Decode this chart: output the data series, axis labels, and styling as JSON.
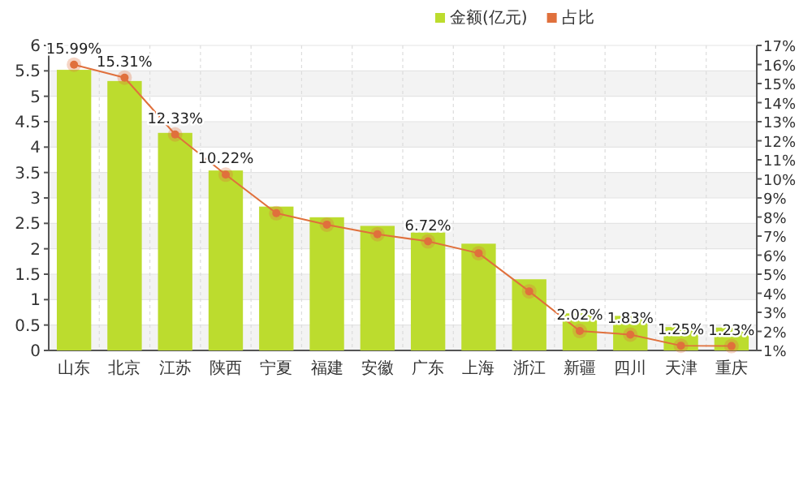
{
  "chart_data": {
    "type": "bar",
    "categories": [
      "山东",
      "北京",
      "江苏",
      "陕西",
      "宁夏",
      "福建",
      "安徽",
      "广东",
      "上海",
      "浙江",
      "新疆",
      "四川",
      "天津",
      "重庆"
    ],
    "series": [
      {
        "name": "金额(亿元)",
        "color": "#bcdc2e",
        "values": [
          5.52,
          5.3,
          4.28,
          3.54,
          2.83,
          2.62,
          2.45,
          2.32,
          2.1,
          1.4,
          0.73,
          0.68,
          0.46,
          0.45
        ]
      },
      {
        "name": "占比",
        "type": "line",
        "axis": "y2",
        "color": "#e0703c",
        "marker": "circle",
        "values": [
          15.99,
          15.31,
          12.33,
          10.22,
          8.2,
          7.6,
          7.1,
          6.72,
          6.1,
          4.1,
          2.02,
          1.83,
          1.25,
          1.23
        ],
        "value_labels": [
          "15.99%",
          "15.31%",
          "12.33%",
          "10.22%",
          null,
          null,
          null,
          "6.72%",
          null,
          null,
          "2.02%",
          "1.83%",
          "1.25%",
          "1.23%"
        ]
      }
    ],
    "ylim": [
      0,
      6
    ],
    "yticks": [
      0,
      0.5,
      1,
      1.5,
      2,
      2.5,
      3,
      3.5,
      4,
      4.5,
      5,
      5.5,
      6
    ],
    "y2lim": [
      1,
      17
    ],
    "y2ticks": [
      {
        "value": 1,
        "label": "1%"
      },
      {
        "value": 2,
        "label": "2%"
      },
      {
        "value": 3,
        "label": "3%"
      },
      {
        "value": 4,
        "label": "4%"
      },
      {
        "value": 5,
        "label": "5%"
      },
      {
        "value": 6,
        "label": "6%"
      },
      {
        "value": 7,
        "label": "7%"
      },
      {
        "value": 8,
        "label": "8%"
      },
      {
        "value": 9,
        "label": "9%"
      },
      {
        "value": 10,
        "label": "10%"
      },
      {
        "value": 11,
        "label": "11%"
      },
      {
        "value": 12,
        "label": "12%"
      },
      {
        "value": 13,
        "label": "13%"
      },
      {
        "value": 14,
        "label": "14%"
      },
      {
        "value": 15,
        "label": "15%"
      },
      {
        "value": 16,
        "label": "16%"
      },
      {
        "value": 17,
        "label": "17%"
      }
    ],
    "grid": true,
    "legend": "top"
  }
}
